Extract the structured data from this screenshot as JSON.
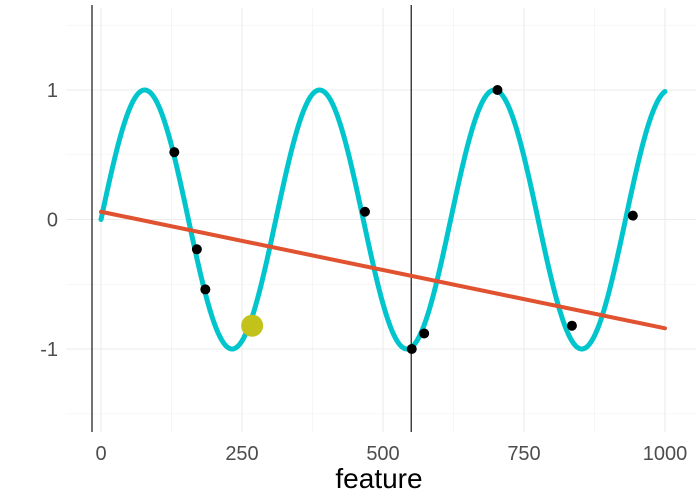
{
  "chart_data": {
    "type": "line",
    "xlabel": "feature",
    "ylabel": "",
    "xlim": [
      -10,
      1000
    ],
    "ylim": [
      -1.6,
      1.6
    ],
    "x_ticks": [
      0,
      250,
      500,
      750,
      1000
    ],
    "y_ticks": [
      -1,
      0,
      1
    ],
    "x_tick_labels": [
      "0",
      "250",
      "500",
      "750",
      "1000"
    ],
    "y_tick_labels": [
      "-1",
      "0",
      "1"
    ],
    "grid": true,
    "legend": "none",
    "vertical_lines_x": [
      -10,
      550
    ],
    "series": [
      {
        "kind": "sine-curve",
        "color": "#00c5cd",
        "period": 310,
        "x_start": 0,
        "x_end": 1000,
        "amplitude": 1,
        "phase_x_at_zero": 0
      },
      {
        "kind": "linear-fit",
        "color": "#e05230",
        "x": [
          0,
          1000
        ],
        "y": [
          0.06,
          -0.84
        ]
      },
      {
        "kind": "points",
        "color": "#000000",
        "points": [
          {
            "x": 130,
            "y": 0.52
          },
          {
            "x": 170,
            "y": -0.23
          },
          {
            "x": 185,
            "y": -0.54
          },
          {
            "x": 468,
            "y": 0.06
          },
          {
            "x": 551,
            "y": -1.0
          },
          {
            "x": 573,
            "y": -0.88
          },
          {
            "x": 703,
            "y": 1.0
          },
          {
            "x": 835,
            "y": -0.82
          },
          {
            "x": 943,
            "y": 0.03
          }
        ]
      },
      {
        "kind": "highlight-point",
        "color": "#c2c21a",
        "points": [
          {
            "x": 268,
            "y": -0.82
          }
        ]
      }
    ]
  }
}
